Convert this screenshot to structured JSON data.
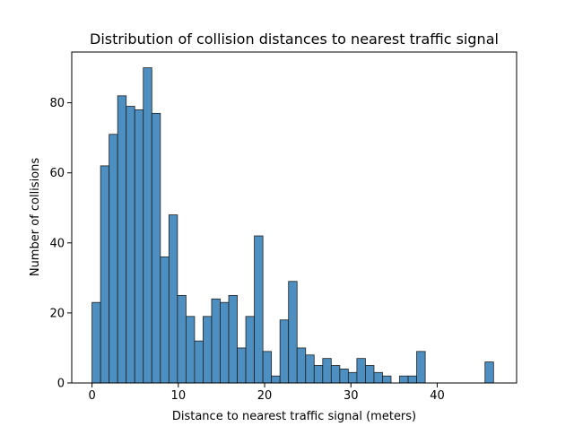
{
  "chart_data": {
    "type": "bar",
    "title": "Distribution of collision distances to nearest traffic signal",
    "xlabel": "Distance to nearest traffic signal (meters)",
    "ylabel": "Number of collisions",
    "xlim": [
      -2.35,
      49.2
    ],
    "ylim": [
      0,
      94.5
    ],
    "x_ticks": [
      0,
      10,
      20,
      30,
      40
    ],
    "y_ticks": [
      0,
      20,
      40,
      60,
      80
    ],
    "bin_start": 0.0,
    "bin_width": 0.99,
    "values": [
      23,
      62,
      71,
      82,
      79,
      78,
      90,
      77,
      36,
      48,
      25,
      19,
      12,
      19,
      24,
      23,
      25,
      10,
      19,
      42,
      9,
      2,
      18,
      29,
      10,
      8,
      5,
      7,
      5,
      4,
      3,
      7,
      5,
      3,
      2,
      0,
      0,
      0,
      0,
      0,
      0,
      0,
      0,
      0,
      0,
      0,
      0,
      0
    ],
    "extra_bins": [
      {
        "x": 35.64,
        "value": 2
      },
      {
        "x": 36.63,
        "value": 2
      },
      {
        "x": 37.62,
        "value": 9
      },
      {
        "x": 45.54,
        "value": 6
      }
    ],
    "bar_color": "#4c8fc0",
    "edge_color": "#1f1f1f",
    "grid": false,
    "legend": "none"
  }
}
